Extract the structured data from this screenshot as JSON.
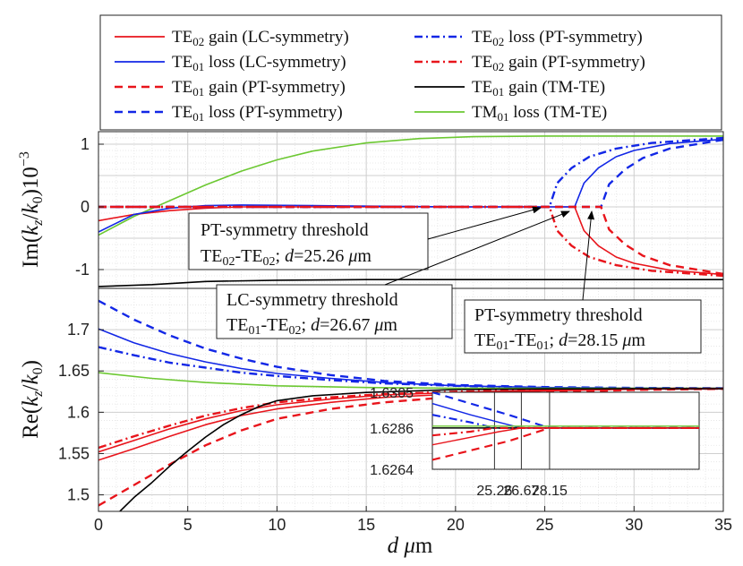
{
  "colors": {
    "red": "#e8141b",
    "blue": "#1227e6",
    "black": "#000000",
    "green": "#6cc832"
  },
  "legend": [
    {
      "base": "TE",
      "sub": "02",
      "rest": " gain (LC-symmetry)",
      "color": "#e8141b",
      "dash": "solid"
    },
    {
      "base": "TE",
      "sub": "02",
      "rest": " loss  (PT-symmetry)",
      "color": "#1227e6",
      "dash": "dashdot"
    },
    {
      "base": "TE",
      "sub": "01",
      "rest": " loss  (LC-symmetry)",
      "color": "#1227e6",
      "dash": "solid"
    },
    {
      "base": "TE",
      "sub": "02",
      "rest": " gain (PT-symmetry)",
      "color": "#e8141b",
      "dash": "dashdot"
    },
    {
      "base": "TE",
      "sub": "01",
      "rest": " gain (PT-symmetry)",
      "color": "#e8141b",
      "dash": "dashed"
    },
    {
      "base": "TE",
      "sub": "01",
      "rest": " gain (TM-TE)",
      "color": "#000000",
      "dash": "solid"
    },
    {
      "base": "TE",
      "sub": "01",
      "rest": " loss  (PT-symmetry)",
      "color": "#1227e6",
      "dash": "dashed"
    },
    {
      "base": "TM",
      "sub": "01",
      "rest": " loss (TM-TE)",
      "color": "#6cc832",
      "dash": "solid"
    }
  ],
  "chart_data": [
    {
      "type": "line",
      "panel": "top",
      "ylabel": "Im(k_z/k_0)10^-3",
      "xlim": [
        0,
        35
      ],
      "ylim": [
        -1.3,
        1.2
      ],
      "yticks": [
        "1",
        "0",
        "-1"
      ],
      "ytick_values": [
        1,
        0,
        -1
      ],
      "grid": true,
      "series": [
        {
          "name": "TM01 loss (TM-TE)",
          "color": "#6cc832",
          "dash": "solid",
          "x": [
            0,
            2,
            4,
            6,
            8,
            10,
            12,
            15,
            18,
            21,
            25,
            30,
            35
          ],
          "y": [
            -0.45,
            -0.15,
            0.1,
            0.35,
            0.57,
            0.75,
            0.89,
            1.02,
            1.09,
            1.12,
            1.13,
            1.13,
            1.13
          ]
        },
        {
          "name": "TE01 gain (TM-TE)",
          "color": "#000000",
          "dash": "solid",
          "x": [
            0,
            3,
            6,
            10,
            15,
            20,
            25,
            30,
            35
          ],
          "y": [
            -1.27,
            -1.24,
            -1.19,
            -1.17,
            -1.16,
            -1.16,
            -1.16,
            -1.16,
            -1.16
          ]
        },
        {
          "name": "TE02 gain (LC-symmetry)",
          "color": "#e8141b",
          "dash": "solid",
          "x": [
            0,
            2,
            4,
            6,
            8,
            12,
            16,
            20,
            24,
            26.67,
            27.2,
            28,
            29,
            30,
            32,
            35
          ],
          "y": [
            -0.22,
            -0.12,
            -0.06,
            -0.02,
            0.0,
            0.0,
            0.0,
            0.0,
            0.0,
            0.0,
            -0.38,
            -0.62,
            -0.8,
            -0.9,
            -1.01,
            -1.08
          ]
        },
        {
          "name": "TE01 loss (LC-symmetry)",
          "color": "#1227e6",
          "dash": "solid",
          "x": [
            0,
            2,
            4,
            6,
            8,
            12,
            16,
            20,
            24,
            26.67,
            27.2,
            28,
            29,
            30,
            32,
            35
          ],
          "y": [
            -0.4,
            -0.12,
            -0.02,
            0.02,
            0.03,
            0.02,
            0.01,
            0.0,
            0.0,
            0.0,
            0.38,
            0.62,
            0.8,
            0.9,
            1.01,
            1.08
          ]
        },
        {
          "name": "TE02 loss (PT-symmetry)",
          "color": "#1227e6",
          "dash": "dashdot",
          "x": [
            0,
            5,
            10,
            15,
            20,
            25.26,
            25.7,
            26.5,
            27.5,
            29,
            31,
            35
          ],
          "y": [
            0,
            0,
            0,
            0,
            0,
            0,
            0.38,
            0.62,
            0.8,
            0.93,
            1.02,
            1.1
          ]
        },
        {
          "name": "TE02 gain (PT-symmetry)",
          "color": "#e8141b",
          "dash": "dashdot",
          "x": [
            0,
            5,
            10,
            15,
            20,
            25.26,
            25.7,
            26.5,
            27.5,
            29,
            31,
            35
          ],
          "y": [
            0,
            0,
            0,
            0,
            0,
            0,
            -0.38,
            -0.62,
            -0.8,
            -0.93,
            -1.02,
            -1.1
          ]
        },
        {
          "name": "TE01 loss (PT-symmetry)",
          "color": "#1227e6",
          "dash": "dashed",
          "x": [
            0,
            5,
            10,
            15,
            20,
            25,
            28.15,
            28.6,
            29.5,
            30.5,
            32,
            35
          ],
          "y": [
            0,
            0,
            0,
            0,
            0,
            0,
            0,
            0.36,
            0.6,
            0.78,
            0.93,
            1.07
          ]
        },
        {
          "name": "TE01 gain (PT-symmetry)",
          "color": "#e8141b",
          "dash": "dashed",
          "x": [
            0,
            5,
            10,
            15,
            20,
            25,
            28.15,
            28.6,
            29.5,
            30.5,
            32,
            35
          ],
          "y": [
            0,
            0,
            0,
            0,
            0,
            0,
            0,
            -0.36,
            -0.6,
            -0.78,
            -0.93,
            -1.07
          ]
        }
      ]
    },
    {
      "type": "line",
      "panel": "bottom",
      "xlabel": "d μm",
      "ylabel": "Re(k_z/k_0)",
      "xlim": [
        0,
        35
      ],
      "ylim": [
        1.48,
        1.75
      ],
      "xticks": [
        "0",
        "5",
        "10",
        "15",
        "20",
        "25",
        "30",
        "35"
      ],
      "xtick_values": [
        0,
        5,
        10,
        15,
        20,
        25,
        30,
        35
      ],
      "yticks": [
        "1.7",
        "1.65",
        "1.6",
        "1.55",
        "1.5"
      ],
      "ytick_values": [
        1.7,
        1.65,
        1.6,
        1.55,
        1.5
      ],
      "grid": true,
      "series": [
        {
          "name": "TE01 loss (PT-symmetry)",
          "color": "#1227e6",
          "dash": "dashed",
          "x": [
            0,
            2,
            4,
            6,
            8,
            10,
            13,
            16,
            20,
            25,
            30,
            35
          ],
          "y": [
            1.735,
            1.712,
            1.693,
            1.677,
            1.665,
            1.655,
            1.645,
            1.638,
            1.633,
            1.6305,
            1.6295,
            1.6292
          ]
        },
        {
          "name": "TE01 loss (LC-symmetry)",
          "color": "#1227e6",
          "dash": "solid",
          "x": [
            0,
            2,
            4,
            6,
            8,
            10,
            13,
            16,
            20,
            25,
            30,
            35
          ],
          "y": [
            1.701,
            1.684,
            1.671,
            1.661,
            1.653,
            1.647,
            1.641,
            1.636,
            1.632,
            1.63,
            1.6289,
            1.6287
          ]
        },
        {
          "name": "TE02 loss (PT-symmetry)",
          "color": "#1227e6",
          "dash": "dashdot",
          "x": [
            0,
            2,
            4,
            6,
            8,
            10,
            13,
            16,
            20,
            25,
            30,
            35
          ],
          "y": [
            1.679,
            1.669,
            1.66,
            1.654,
            1.648,
            1.644,
            1.639,
            1.635,
            1.632,
            1.6295,
            1.6288,
            1.6287
          ]
        },
        {
          "name": "TM01 loss (TM-TE)",
          "color": "#6cc832",
          "dash": "solid",
          "x": [
            0,
            3,
            6,
            10,
            15,
            20,
            25,
            30,
            35
          ],
          "y": [
            1.648,
            1.641,
            1.636,
            1.632,
            1.63,
            1.629,
            1.629,
            1.629,
            1.629
          ]
        },
        {
          "name": "TE02 gain (PT-symmetry)",
          "color": "#e8141b",
          "dash": "dashdot",
          "x": [
            0,
            2,
            4,
            6,
            8,
            10,
            13,
            16,
            20,
            25,
            30,
            35
          ],
          "y": [
            1.557,
            1.571,
            1.584,
            1.596,
            1.605,
            1.612,
            1.618,
            1.622,
            1.625,
            1.627,
            1.6283,
            1.6285
          ]
        },
        {
          "name": "TE02 gain (LC-symmetry)",
          "color": "#e8141b",
          "dash": "solid",
          "x": [
            0,
            2,
            4,
            6,
            8,
            10,
            13,
            16,
            20,
            25,
            30,
            35
          ],
          "y": [
            1.552,
            1.566,
            1.58,
            1.592,
            1.602,
            1.609,
            1.616,
            1.621,
            1.624,
            1.6268,
            1.6282,
            1.6285
          ]
        },
        {
          "name": "TE01 gain (LC-symmetry)",
          "color": "#e8141b",
          "dash": "solid",
          "x": [
            0,
            2,
            4,
            6,
            8,
            10,
            13,
            16,
            20,
            25,
            30,
            35
          ],
          "y": [
            1.542,
            1.556,
            1.571,
            1.585,
            1.596,
            1.604,
            1.612,
            1.618,
            1.622,
            1.626,
            1.628,
            1.6285
          ]
        },
        {
          "name": "TE01 gain (PT-symmetry)",
          "color": "#e8141b",
          "dash": "dashed",
          "x": [
            0,
            2,
            4,
            6,
            8,
            10,
            13,
            16,
            20,
            25,
            30,
            35
          ],
          "y": [
            1.487,
            1.512,
            1.537,
            1.56,
            1.578,
            1.592,
            1.604,
            1.612,
            1.619,
            1.624,
            1.627,
            1.6283
          ]
        },
        {
          "name": "TE01 gain (TM-TE)",
          "color": "#000000",
          "dash": "solid",
          "x": [
            1.2,
            2,
            3,
            4,
            5,
            6,
            7,
            8,
            9,
            10,
            12,
            15,
            20,
            25,
            30,
            35
          ],
          "y": [
            1.48,
            1.497,
            1.515,
            1.535,
            1.553,
            1.57,
            1.585,
            1.597,
            1.607,
            1.614,
            1.62,
            1.624,
            1.6275,
            1.6283,
            1.6285,
            1.6286
          ]
        }
      ]
    },
    {
      "type": "line",
      "panel": "inset",
      "ylim": [
        1.6264,
        1.6305
      ],
      "yticks": [
        "1.6305",
        "1.6286",
        "1.6264"
      ],
      "ytick_values": [
        1.6305,
        1.6286,
        1.6264
      ],
      "xlim": [
        22,
        36
      ],
      "xticks": [
        "25.26",
        "26.67",
        "28.15"
      ],
      "xtick_values": [
        25.26,
        26.67,
        28.15
      ],
      "series": [
        {
          "name": "TE01 loss (PT-symmetry)",
          "color": "#1227e6",
          "dash": "dashed",
          "x": [
            22,
            24,
            26,
            28.15,
            36
          ],
          "y": [
            1.6305,
            1.6299,
            1.6293,
            1.6286,
            1.6286
          ]
        },
        {
          "name": "TE01 loss (LC-symmetry)",
          "color": "#1227e6",
          "dash": "solid",
          "x": [
            22,
            24,
            25.5,
            26.67,
            36
          ],
          "y": [
            1.6299,
            1.6293,
            1.6289,
            1.6286,
            1.6286
          ]
        },
        {
          "name": "TE02 loss (PT-symmetry)",
          "color": "#1227e6",
          "dash": "dashdot",
          "x": [
            22,
            24,
            25.26,
            36
          ],
          "y": [
            1.6293,
            1.6289,
            1.6286,
            1.6286
          ]
        },
        {
          "name": "TM01 loss (TM-TE)",
          "color": "#6cc832",
          "dash": "solid",
          "x": [
            22,
            36
          ],
          "y": [
            1.6287,
            1.6287
          ]
        },
        {
          "name": "TE01 gain (TM-TE)",
          "color": "#000000",
          "dash": "solid",
          "x": [
            22,
            36
          ],
          "y": [
            1.6286,
            1.6286
          ]
        },
        {
          "name": "TE02 gain (PT-symmetry)",
          "color": "#e8141b",
          "dash": "dashdot",
          "x": [
            22,
            24,
            25.26,
            36
          ],
          "y": [
            1.6282,
            1.6284,
            1.6286,
            1.6286
          ]
        },
        {
          "name": "TE02 gain (LC-symmetry)",
          "color": "#e8141b",
          "dash": "solid",
          "x": [
            22,
            24,
            25.5,
            26.67,
            36
          ],
          "y": [
            1.6277,
            1.6281,
            1.6284,
            1.6286,
            1.6286
          ]
        },
        {
          "name": "TE01 gain (PT-symmetry)",
          "color": "#e8141b",
          "dash": "dashed",
          "x": [
            22,
            24,
            26,
            28.15,
            36
          ],
          "y": [
            1.6269,
            1.6274,
            1.6279,
            1.6286,
            1.6286
          ]
        }
      ]
    }
  ],
  "annotations": [
    {
      "line1": "PT-symmetry threshold",
      "l2_a": "TE",
      "l2_s1": "02",
      "l2_b": "-TE",
      "l2_s2": "02",
      "l2_c": "; ",
      "l2_d": "d",
      "l2_e": "=25.26 ",
      "l2_f": "μ",
      "l2_g": "m",
      "target_x": 25.26
    },
    {
      "line1": "LC-symmetry threshold",
      "l2_a": "TE",
      "l2_s1": "01",
      "l2_b": "-TE",
      "l2_s2": "02",
      "l2_c": "; ",
      "l2_d": "d",
      "l2_e": "=26.67 ",
      "l2_f": "μ",
      "l2_g": "m",
      "target_x": 26.67
    },
    {
      "line1": "PT-symmetry threshold",
      "l2_a": "TE",
      "l2_s1": "01",
      "l2_b": "-TE",
      "l2_s2": "01",
      "l2_c": "; ",
      "l2_d": "d",
      "l2_e": "=28.15 ",
      "l2_f": "μ",
      "l2_g": "m",
      "target_x": 28.15
    }
  ],
  "axis_labels": {
    "top_y": {
      "a": "Im(",
      "b": "k",
      "c": "z",
      "d": "/",
      "e": "k",
      "f": "0",
      "g": ")10",
      "h": "−3"
    },
    "bottom_y": {
      "a": "Re(",
      "b": "k",
      "c": "z",
      "d": "/",
      "e": "k",
      "f": "0",
      "g": ")"
    },
    "x": {
      "a": "d",
      "b": " μ",
      "c": "m"
    }
  }
}
